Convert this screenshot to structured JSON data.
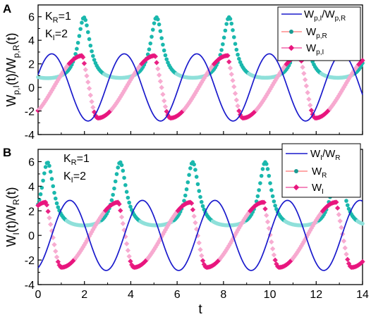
{
  "figure": {
    "colors": {
      "ratio_line": "#1a1acc",
      "real_series": "#1ab8ad",
      "imag_series": "#e8157d",
      "imag_light": "#f7a8cf",
      "real_light": "#8fe0da",
      "ref_line": "#ff5050"
    },
    "shared_axis": {
      "xlabel": "t",
      "xlim": [
        0,
        14
      ],
      "x_ticks": [
        "0",
        "2",
        "4",
        "6",
        "8",
        "10",
        "12",
        "14"
      ]
    }
  },
  "chart_data": [
    {
      "type": "line",
      "panel_label": "A",
      "annotations": {
        "kr": "K",
        "kr_sub": "R",
        "kr_val": "=1",
        "ki": "K",
        "ki_sub": "I",
        "ki_val": "=2"
      },
      "ylabel": {
        "a": "W",
        "a_sub": "p,I",
        "b": "(t)/W",
        "b_sub": "p,R",
        "c": "(t)"
      },
      "ylim": [
        -4,
        7
      ],
      "y_ticks": [
        "-4",
        "-2",
        "0",
        "2",
        "4",
        "6"
      ],
      "grid": false,
      "legend_position": "top-right",
      "legend": [
        {
          "text": "W",
          "sub": "p,I",
          "text2": "/W",
          "sub2": "p,R"
        },
        {
          "text": "W",
          "sub": "p,R"
        },
        {
          "text": "W",
          "sub": "p,I"
        }
      ],
      "params": {
        "ratio": {
          "amp": 2.85,
          "period": 3.13,
          "phase": 0.39
        },
        "real": {
          "base": 0.3,
          "peak": 5.8,
          "period": 3.13,
          "t_peak": 1.98,
          "width": 0.32
        },
        "imag": {
          "peak": 2.7,
          "trough": -2.6,
          "period": 3.13,
          "t_zero": 2.2
        }
      },
      "series": [
        {
          "name": "Wp,I/Wp,R",
          "kind": "ratio"
        },
        {
          "name": "Wp,R",
          "kind": "real"
        },
        {
          "name": "Wp,I",
          "kind": "imag"
        }
      ]
    },
    {
      "type": "line",
      "panel_label": "B",
      "annotations": {
        "kr": "K",
        "kr_sub": "R",
        "kr_val": "=1",
        "ki": "K",
        "ki_sub": "I",
        "ki_val": "=2"
      },
      "ylabel": {
        "a": "W",
        "a_sub": "I",
        "b": "(t)/W",
        "b_sub": "R",
        "c": "(t)"
      },
      "ylim": [
        -4,
        7
      ],
      "y_ticks": [
        "-4",
        "-2",
        "0",
        "2",
        "4",
        "6"
      ],
      "grid": false,
      "legend_position": "top-right",
      "legend": [
        {
          "text": "W",
          "sub": "I",
          "text2": "/W",
          "sub2": "R"
        },
        {
          "text": "W",
          "sub": "R"
        },
        {
          "text": "W",
          "sub": "I"
        }
      ],
      "params": {
        "ratio": {
          "amp": 2.85,
          "period": 3.13,
          "phase": -1.18
        },
        "real": {
          "base": 0.3,
          "peak": 5.8,
          "period": 3.13,
          "t_peak": 0.41,
          "width": 0.32
        },
        "imag": {
          "peak": 2.7,
          "trough": -2.6,
          "period": 3.13,
          "t_zero": 0.63
        }
      },
      "series": [
        {
          "name": "WI/WR",
          "kind": "ratio"
        },
        {
          "name": "WR",
          "kind": "real"
        },
        {
          "name": "WI",
          "kind": "imag"
        }
      ]
    }
  ]
}
